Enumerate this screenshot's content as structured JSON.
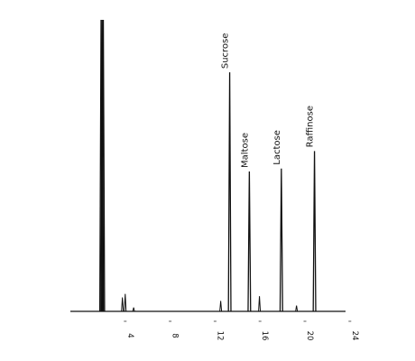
{
  "chart_data": {
    "type": "line",
    "title": "",
    "xlabel": "",
    "ylabel": "",
    "xlim": [
      -0.5,
      26.5
    ],
    "x_ticks": [
      "4",
      "8",
      "12",
      "16",
      "20",
      "24"
    ],
    "x_tick_values": [
      4,
      8,
      12,
      16,
      20,
      24
    ],
    "grid": false,
    "legend": "none",
    "line_color": "#111111",
    "peaks": [
      {
        "x": 1.85,
        "height": 100,
        "label": ""
      },
      {
        "x": 1.95,
        "height": 100,
        "label": ""
      },
      {
        "x": 2.05,
        "height": 100,
        "label": ""
      },
      {
        "x": 3.75,
        "height": 4.8,
        "label": ""
      },
      {
        "x": 4.0,
        "height": 6.0,
        "label": ""
      },
      {
        "x": 4.75,
        "height": 1.3,
        "label": ""
      },
      {
        "x": 12.5,
        "height": 3.6,
        "label": ""
      },
      {
        "x": 13.3,
        "height": 82,
        "label": "Sucrose"
      },
      {
        "x": 15.05,
        "height": 48,
        "label": "Maltose"
      },
      {
        "x": 15.95,
        "height": 5.2,
        "label": ""
      },
      {
        "x": 17.9,
        "height": 49,
        "label": "Lactose"
      },
      {
        "x": 19.25,
        "height": 2.0,
        "label": ""
      },
      {
        "x": 20.85,
        "height": 55,
        "label": "Raffinose"
      }
    ]
  }
}
